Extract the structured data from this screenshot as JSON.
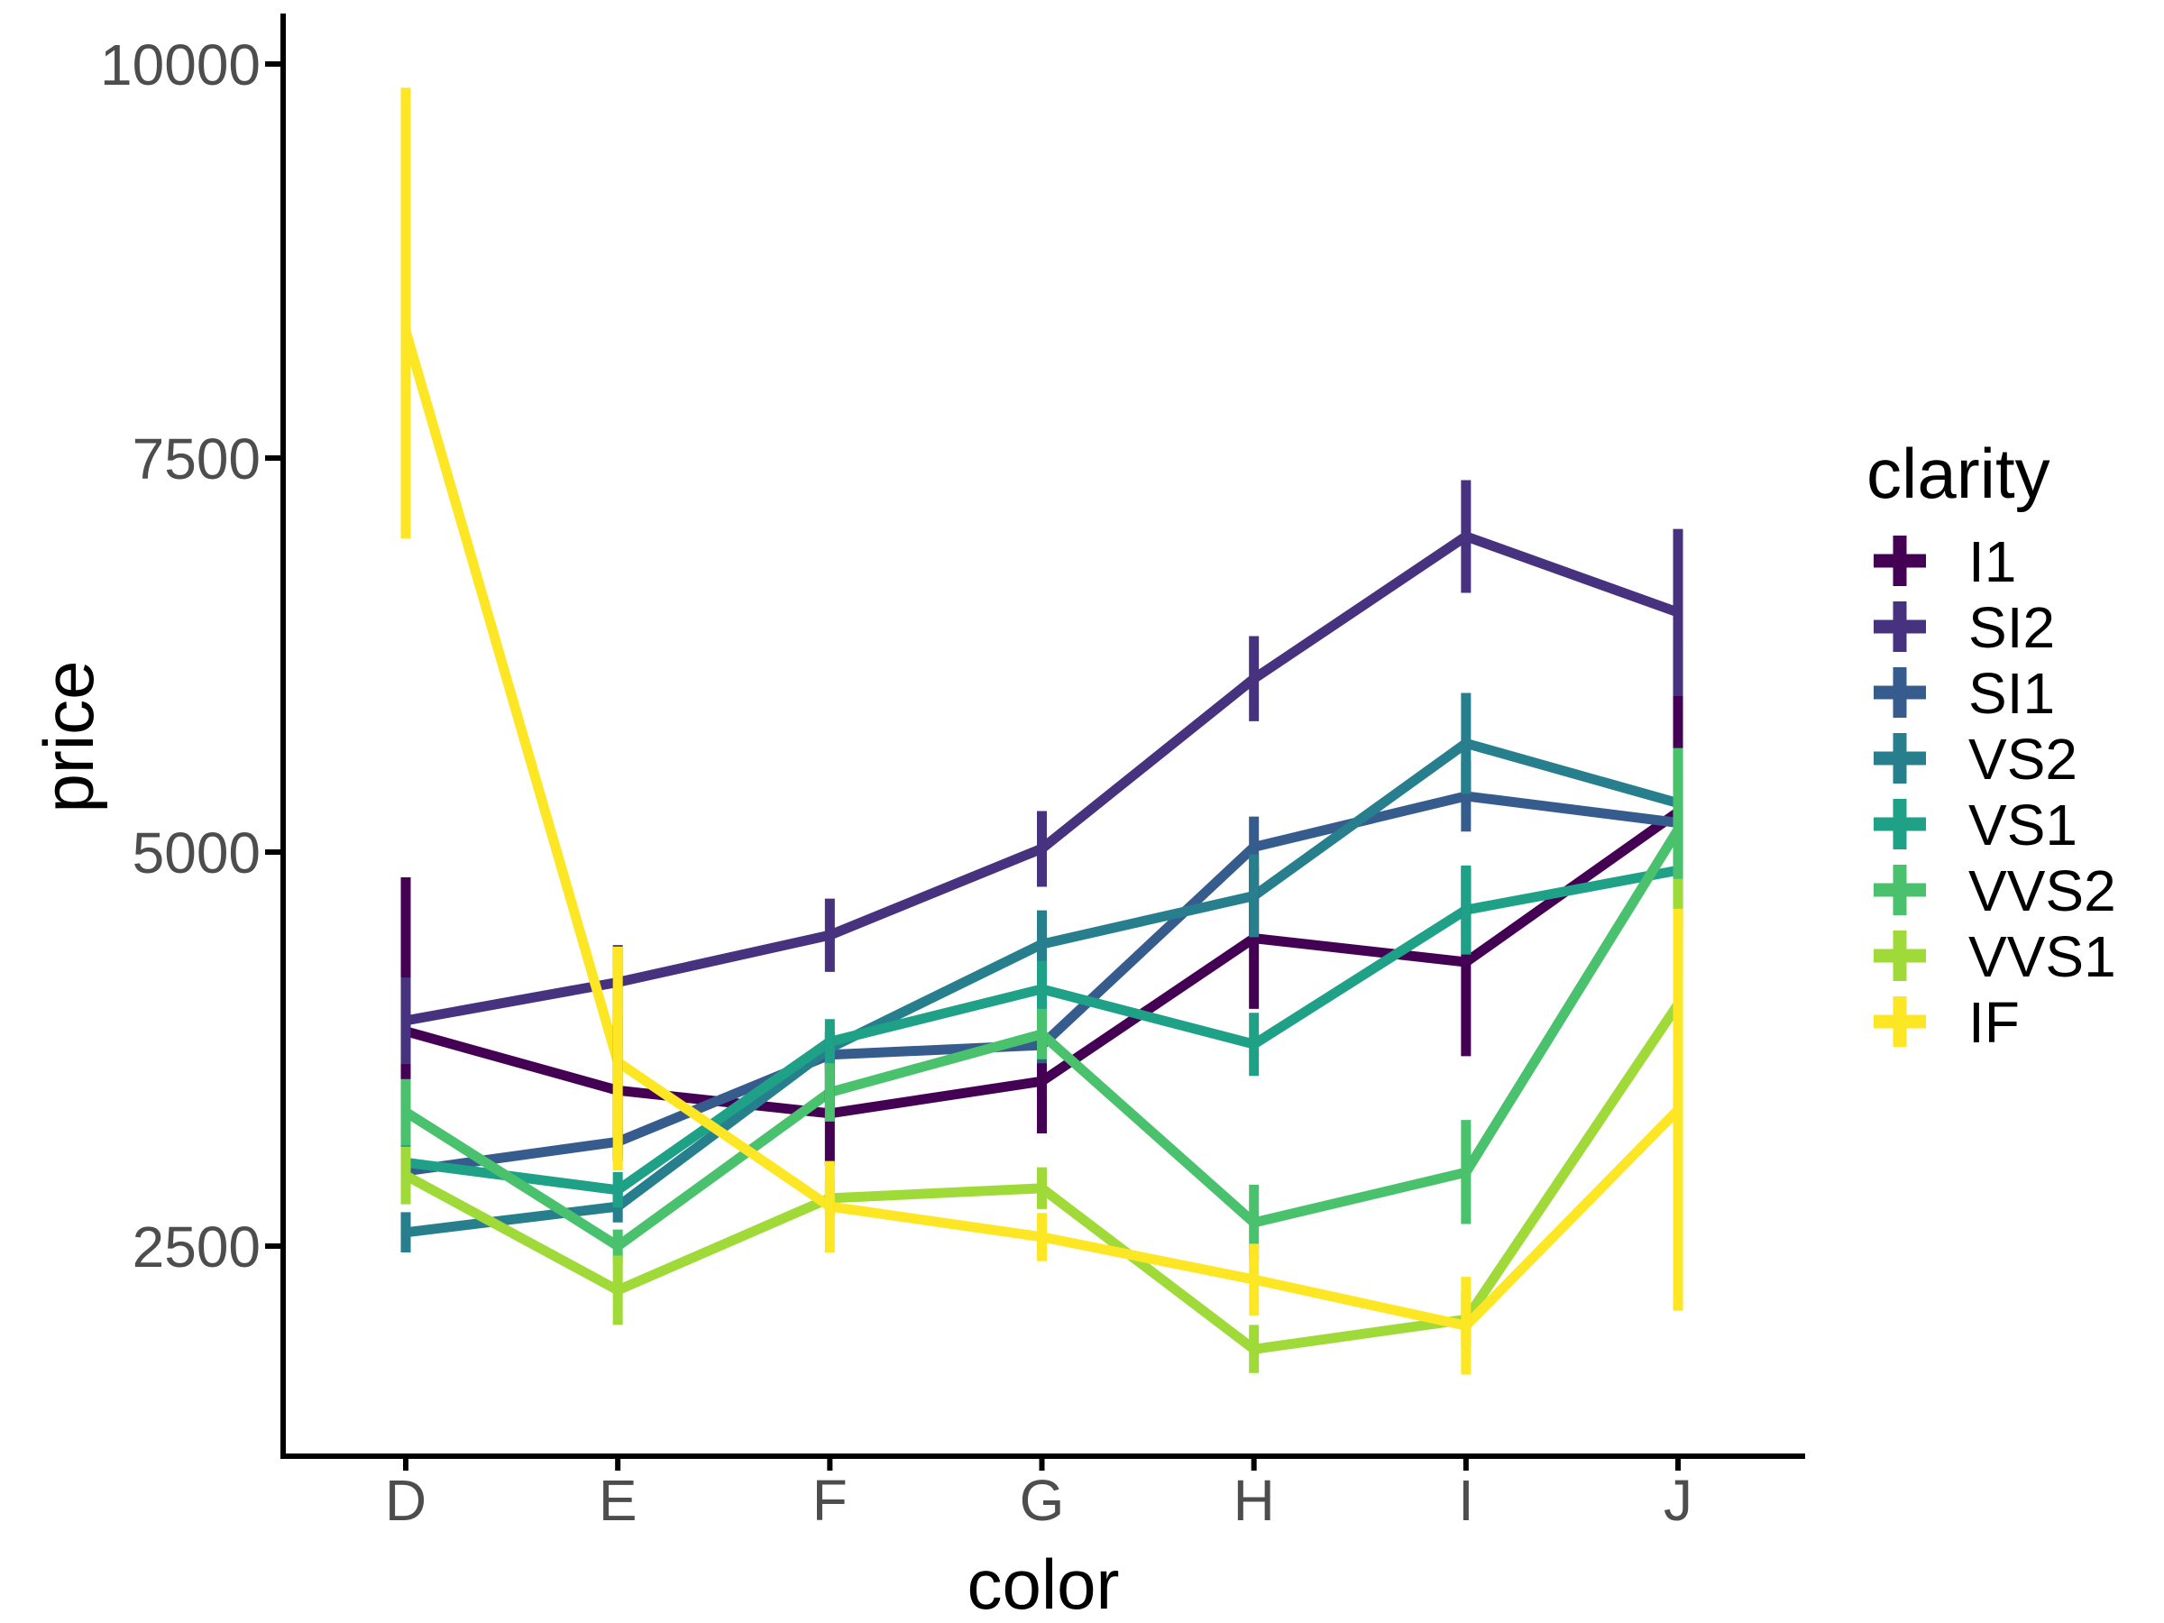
{
  "figure": {
    "background": "#ffffff",
    "axis_color": "#000000",
    "tick_text_color": "#4D4D4D",
    "x_axis": {
      "label": "color",
      "categories": [
        "D",
        "E",
        "F",
        "G",
        "H",
        "I",
        "J"
      ]
    },
    "y_axis": {
      "label": "price",
      "ticks": [
        "2500",
        "5000",
        "7500",
        "10000"
      ]
    }
  },
  "legend": {
    "title": "clarity",
    "key_glyph": "errorbar-cross-icon",
    "items": [
      {
        "label": "I1",
        "color": "#440154"
      },
      {
        "label": "SI2",
        "color": "#46327E"
      },
      {
        "label": "SI1",
        "color": "#365C8D"
      },
      {
        "label": "VS2",
        "color": "#277F8E"
      },
      {
        "label": "VS1",
        "color": "#1FA187"
      },
      {
        "label": "VVS2",
        "color": "#4AC16D"
      },
      {
        "label": "VVS1",
        "color": "#A0DA39"
      },
      {
        "label": "IF",
        "color": "#FDE725"
      }
    ]
  },
  "chart_data": {
    "type": "line",
    "title": "",
    "xlabel": "color",
    "ylabel": "price",
    "categories": [
      "D",
      "E",
      "F",
      "G",
      "H",
      "I",
      "J"
    ],
    "yticks": [
      2500,
      5000,
      7500,
      10000
    ],
    "ylim": [
      1450,
      10400
    ],
    "grid": false,
    "error_bars": true,
    "legend_position": "right",
    "series": [
      {
        "name": "I1",
        "color": "#440154",
        "values": [
          3863,
          3488,
          3342,
          3546,
          4453,
          4302,
          5254
        ],
        "err_low": [
          2960,
          3040,
          3010,
          3215,
          4005,
          3705,
          4175
        ],
        "err_high": [
          4840,
          3940,
          3670,
          3875,
          4900,
          4900,
          6335
        ]
      },
      {
        "name": "SI2",
        "color": "#46327E",
        "values": [
          3931,
          4174,
          4473,
          5022,
          6100,
          7003,
          6521
        ],
        "err_low": [
          3655,
          3935,
          4240,
          4780,
          5830,
          6645,
          5990
        ],
        "err_high": [
          4205,
          4410,
          4705,
          5260,
          6370,
          7360,
          7050
        ]
      },
      {
        "name": "SI1",
        "color": "#365C8D",
        "values": [
          2976,
          3162,
          3714,
          3775,
          5032,
          5355,
          5186
        ],
        "err_low": [
          2870,
          3070,
          3600,
          3660,
          4840,
          5130,
          4855
        ],
        "err_high": [
          3080,
          3255,
          3830,
          3890,
          5225,
          5580,
          5515
        ]
      },
      {
        "name": "VS2",
        "color": "#277F8E",
        "values": [
          2587,
          2751,
          3757,
          4416,
          4722,
          5690,
          5311
        ],
        "err_low": [
          2460,
          2650,
          3650,
          4200,
          4460,
          5370,
          4970
        ],
        "err_high": [
          2715,
          2850,
          3865,
          4630,
          4985,
          6010,
          5650
        ]
      },
      {
        "name": "VS1",
        "color": "#1FA187",
        "values": [
          3030,
          2856,
          3797,
          4131,
          3781,
          4633,
          4884
        ],
        "err_low": [
          2800,
          2745,
          3650,
          3950,
          3580,
          4350,
          4495
        ],
        "err_high": [
          3260,
          2970,
          3940,
          4310,
          3980,
          4915,
          5275
        ]
      },
      {
        "name": "VVS2",
        "color": "#4AC16D",
        "values": [
          3351,
          2500,
          3476,
          3845,
          2649,
          2968,
          5142
        ],
        "err_low": [
          3140,
          2395,
          3290,
          3685,
          2410,
          2640,
          4620
        ],
        "err_high": [
          3560,
          2605,
          3660,
          4005,
          2890,
          3300,
          5660
        ]
      },
      {
        "name": "VVS1",
        "color": "#A0DA39",
        "values": [
          2948,
          2220,
          2804,
          2867,
          1846,
          2035,
          4034
        ],
        "err_low": [
          2765,
          2000,
          2695,
          2735,
          1695,
          1855,
          3230
        ],
        "err_high": [
          3130,
          2440,
          2915,
          3000,
          2000,
          2215,
          4830
        ]
      },
      {
        "name": "IF",
        "color": "#FDE725",
        "values": [
          8307,
          3668,
          2751,
          2558,
          2288,
          1995,
          3364
        ],
        "err_low": [
          6990,
          2980,
          2460,
          2405,
          2060,
          1685,
          2090
        ],
        "err_high": [
          9850,
          4400,
          3040,
          2710,
          2515,
          2305,
          4640
        ]
      }
    ]
  }
}
